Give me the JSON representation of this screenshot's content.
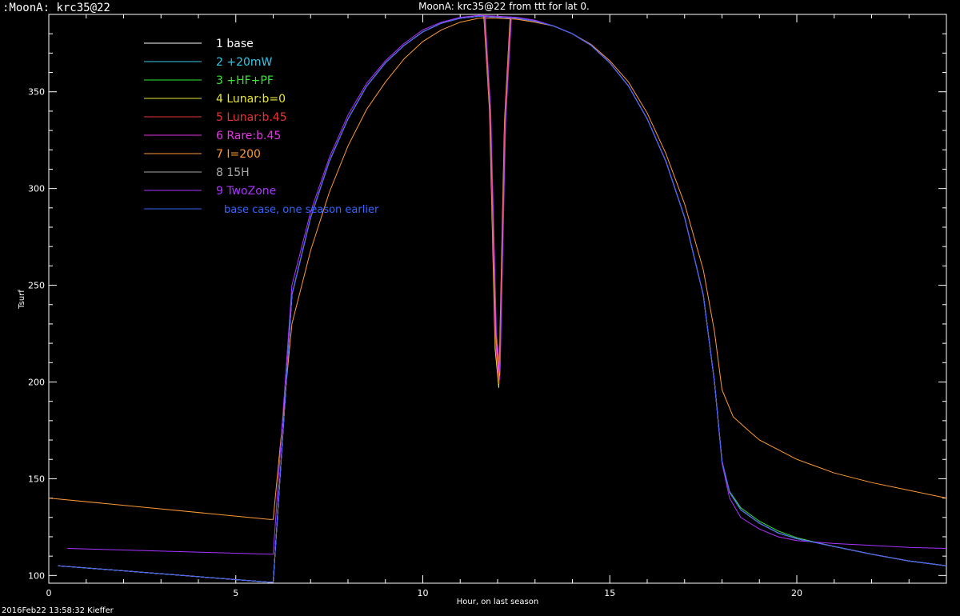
{
  "window_title": ":MoonA: krc35@22",
  "footer": "2016Feb22 13:58:32 Kieffer",
  "colors": {
    "background": "#000000",
    "axis": "#ffffff"
  },
  "chart_data": {
    "type": "line",
    "title": "MoonA: krc35@22 from ttt for lat 0.",
    "xlabel": "Hour, on last season",
    "ylabel": "Tsurf",
    "xlim": [
      0,
      24
    ],
    "ylim": [
      96,
      390
    ],
    "xticks": [
      0,
      5,
      10,
      15,
      20
    ],
    "yticks": [
      100,
      150,
      200,
      250,
      300,
      350
    ],
    "grid": false,
    "legend_position": "top-left",
    "series": [
      {
        "name": "1 base",
        "color": "#ffffff",
        "dip": false,
        "x": [
          0.25,
          5.9,
          6.0,
          6.5,
          7,
          7.5,
          8,
          8.5,
          9,
          9.5,
          10,
          10.5,
          11,
          11.5,
          12,
          12.5,
          13,
          13.5,
          14,
          14.5,
          15,
          15.5,
          16,
          16.5,
          17,
          17.5,
          17.8,
          18.0,
          18.2,
          18.5,
          19,
          19.5,
          20,
          21,
          22,
          23,
          24
        ],
        "y": [
          105,
          96.5,
          96.5,
          245,
          285,
          314,
          336,
          353,
          365,
          374,
          381,
          385.5,
          388,
          389,
          388.5,
          388,
          386.5,
          384,
          380,
          374,
          365,
          353,
          336,
          314,
          285,
          245,
          200,
          159,
          143,
          134,
          127,
          122,
          119,
          115,
          111,
          107.5,
          105
        ]
      },
      {
        "name": "2 +20mW",
        "color": "#33c8e8",
        "dip": false,
        "x": [
          0.25,
          5.9,
          6.0,
          6.5,
          7,
          7.5,
          8,
          8.5,
          9,
          9.5,
          10,
          10.5,
          11,
          11.5,
          12,
          12.5,
          13,
          13.5,
          14,
          14.5,
          15,
          15.5,
          16,
          16.5,
          17,
          17.5,
          17.8,
          18.0,
          18.2,
          18.5,
          19,
          19.5,
          20,
          21,
          22,
          23,
          24
        ],
        "y": [
          105,
          96.5,
          96.5,
          245,
          285,
          314,
          336,
          353,
          365,
          374,
          381,
          385.5,
          388,
          389,
          388.5,
          388,
          386.5,
          384,
          380,
          374,
          365,
          353,
          336,
          314,
          285,
          245,
          200,
          159,
          143,
          134,
          127,
          122,
          119,
          115,
          111,
          107.5,
          105
        ]
      },
      {
        "name": "3 +HF+PF",
        "color": "#33e833",
        "dip": false,
        "x": [
          0.25,
          5.9,
          6.0,
          6.5,
          7,
          7.5,
          8,
          8.5,
          9,
          9.5,
          10,
          10.5,
          11,
          11.5,
          12,
          12.5,
          13,
          13.5,
          14,
          14.5,
          15,
          15.5,
          16,
          16.5,
          17,
          17.5,
          17.8,
          18.0,
          18.2,
          18.5,
          19,
          19.5,
          20,
          21,
          22,
          23,
          24
        ],
        "y": [
          105,
          96.5,
          96.5,
          245,
          285,
          314,
          336,
          353,
          365,
          374,
          381,
          385.5,
          388,
          389,
          388.5,
          388,
          386.5,
          384,
          380,
          374,
          365,
          353,
          336,
          314,
          285,
          245,
          200,
          159,
          143.5,
          135,
          128,
          123,
          119.5,
          115,
          111,
          107.5,
          105
        ]
      },
      {
        "name": "4 Lunar:b=0",
        "color": "#e8e833",
        "dip": true,
        "x": [
          0.25,
          5.9,
          6.0,
          6.5,
          7,
          7.5,
          8,
          8.5,
          9,
          9.5,
          10,
          10.5,
          11,
          11.5,
          12,
          12.5,
          13,
          13.5,
          14,
          14.5,
          15,
          15.5,
          16,
          16.5,
          17,
          17.5,
          17.8,
          18.0,
          18.2,
          18.5,
          19,
          19.5,
          20,
          21,
          22,
          23,
          24
        ],
        "y": [
          105,
          96.5,
          96.5,
          245,
          285,
          314,
          336,
          353,
          365,
          374,
          381,
          385.5,
          388,
          389,
          388.5,
          388,
          386.5,
          384,
          380,
          374,
          365,
          353,
          336,
          314,
          285,
          245,
          200,
          159,
          143,
          134,
          127,
          122,
          119,
          115,
          111,
          107.5,
          105
        ]
      },
      {
        "name": "5 Lunar:b.45",
        "color": "#e83333",
        "dip": true,
        "x": [
          0.25,
          5.9,
          6.0,
          6.5,
          7,
          7.5,
          8,
          8.5,
          9,
          9.5,
          10,
          10.5,
          11,
          11.5,
          12,
          12.5,
          13,
          13.5,
          14,
          14.5,
          15,
          15.5,
          16,
          16.5,
          17,
          17.5,
          17.8,
          18.0,
          18.2,
          18.5,
          19,
          19.5,
          20,
          21,
          22,
          23,
          24
        ],
        "y": [
          105,
          96.5,
          96.5,
          245,
          285,
          314,
          336,
          353,
          365,
          374,
          381,
          385.5,
          388,
          389,
          388.5,
          388,
          386.5,
          384,
          380,
          374,
          365,
          353,
          336,
          314,
          285,
          245,
          200,
          159,
          143,
          134,
          127,
          122,
          119,
          115,
          111,
          107.5,
          105
        ]
      },
      {
        "name": "6 Rare:b.45",
        "color": "#e833e8",
        "dip": true,
        "x": [
          0.25,
          5.9,
          6.0,
          6.5,
          7,
          7.5,
          8,
          8.5,
          9,
          9.5,
          10,
          10.5,
          11,
          11.5,
          12,
          12.5,
          13,
          13.5,
          14,
          14.5,
          15,
          15.5,
          16,
          16.5,
          17,
          17.5,
          17.8,
          18.0,
          18.2,
          18.5,
          19,
          19.5,
          20,
          21,
          22,
          23,
          24
        ],
        "y": [
          105,
          96.5,
          96.5,
          245,
          285,
          314,
          336,
          353,
          365,
          374,
          381,
          385.5,
          388,
          389,
          388.5,
          388,
          386.5,
          384,
          380,
          374,
          365,
          353,
          336,
          314,
          285,
          245,
          200,
          159,
          143,
          134,
          127,
          122,
          119,
          115,
          111,
          107.5,
          105
        ]
      },
      {
        "name": "7 I=200",
        "color": "#ff9933",
        "dip": true,
        "x": [
          0.0,
          5.9,
          6.0,
          6.5,
          7,
          7.5,
          8,
          8.5,
          9,
          9.5,
          10,
          10.5,
          11,
          11.5,
          12,
          12.5,
          13,
          13.5,
          14,
          14.5,
          15,
          15.5,
          16,
          16.5,
          17,
          17.5,
          17.8,
          18.0,
          18.3,
          18.7,
          19,
          19.5,
          20,
          21,
          22,
          23,
          24
        ],
        "y": [
          140,
          129,
          129,
          230,
          268,
          298,
          322,
          341,
          355,
          367,
          376,
          382,
          386,
          388,
          388,
          387.5,
          386,
          384,
          380,
          374.5,
          366,
          355,
          339,
          318,
          292,
          258,
          226,
          196,
          182,
          175,
          170,
          165,
          160,
          153,
          148,
          144,
          140
        ]
      },
      {
        "name": "8 15H",
        "color": "#aaaaaa",
        "dip": false,
        "x": [
          0.25,
          5.9,
          6.0,
          6.5,
          7,
          7.5,
          8,
          8.5,
          9,
          9.5,
          10,
          10.5,
          11,
          11.5,
          12,
          12.5,
          13,
          13.5,
          14,
          14.5,
          15,
          15.5,
          16,
          16.5,
          17,
          17.5,
          17.8,
          18.0,
          18.2,
          18.5,
          19,
          19.5,
          20,
          21,
          22,
          23,
          24
        ],
        "y": [
          105,
          96.5,
          96.5,
          245,
          285,
          314,
          336,
          353,
          365,
          374,
          381,
          385.5,
          388,
          389,
          388.5,
          388,
          386.5,
          384,
          380,
          374,
          365,
          353,
          336,
          314,
          285,
          245,
          200,
          159,
          143,
          134,
          127,
          122,
          119,
          115,
          111,
          107.5,
          105
        ]
      },
      {
        "name": "9 TwoZone",
        "color": "#aa33ff",
        "dip": true,
        "x": [
          0.5,
          5.9,
          6.0,
          6.5,
          7,
          7.5,
          8,
          8.5,
          9,
          9.5,
          10,
          10.5,
          11,
          11.5,
          12,
          12.5,
          13,
          13.5,
          14,
          14.5,
          15,
          15.5,
          16,
          16.5,
          17,
          17.5,
          17.8,
          18.0,
          18.2,
          18.5,
          19,
          19.5,
          20,
          21,
          22,
          23,
          24
        ],
        "y": [
          114,
          111,
          111,
          250,
          288,
          316,
          338,
          354.5,
          366,
          375,
          382,
          386,
          388.5,
          389.5,
          389,
          388.5,
          387,
          384,
          380,
          374,
          365,
          353,
          336,
          314,
          285,
          245,
          200,
          158,
          140,
          130,
          124,
          120,
          118,
          116.5,
          115.5,
          114.5,
          114
        ]
      },
      {
        "name": "base case, one season earlier",
        "color": "#3366ff",
        "dip": false,
        "x": [
          0.25,
          5.9,
          6.0,
          6.5,
          7,
          7.5,
          8,
          8.5,
          9,
          9.5,
          10,
          10.5,
          11,
          11.5,
          12,
          12.5,
          13,
          13.5,
          14,
          14.5,
          15,
          15.5,
          16,
          16.5,
          17,
          17.5,
          17.8,
          18.0,
          18.2,
          18.5,
          19,
          19.5,
          20,
          21,
          22,
          23,
          24
        ],
        "y": [
          105,
          96.5,
          96.5,
          245,
          285,
          314,
          336,
          353,
          365,
          374,
          381,
          385.5,
          388,
          389,
          388.5,
          388,
          386.5,
          384,
          380,
          374,
          365,
          353,
          336,
          314,
          285,
          245,
          200,
          159,
          143,
          134,
          127,
          122,
          119,
          115,
          111,
          107.5,
          105
        ]
      }
    ],
    "dip": {
      "x": [
        11.65,
        11.8,
        11.95,
        12.05,
        12.2,
        12.35
      ],
      "y": [
        389,
        340,
        225,
        205,
        335,
        388
      ]
    }
  }
}
